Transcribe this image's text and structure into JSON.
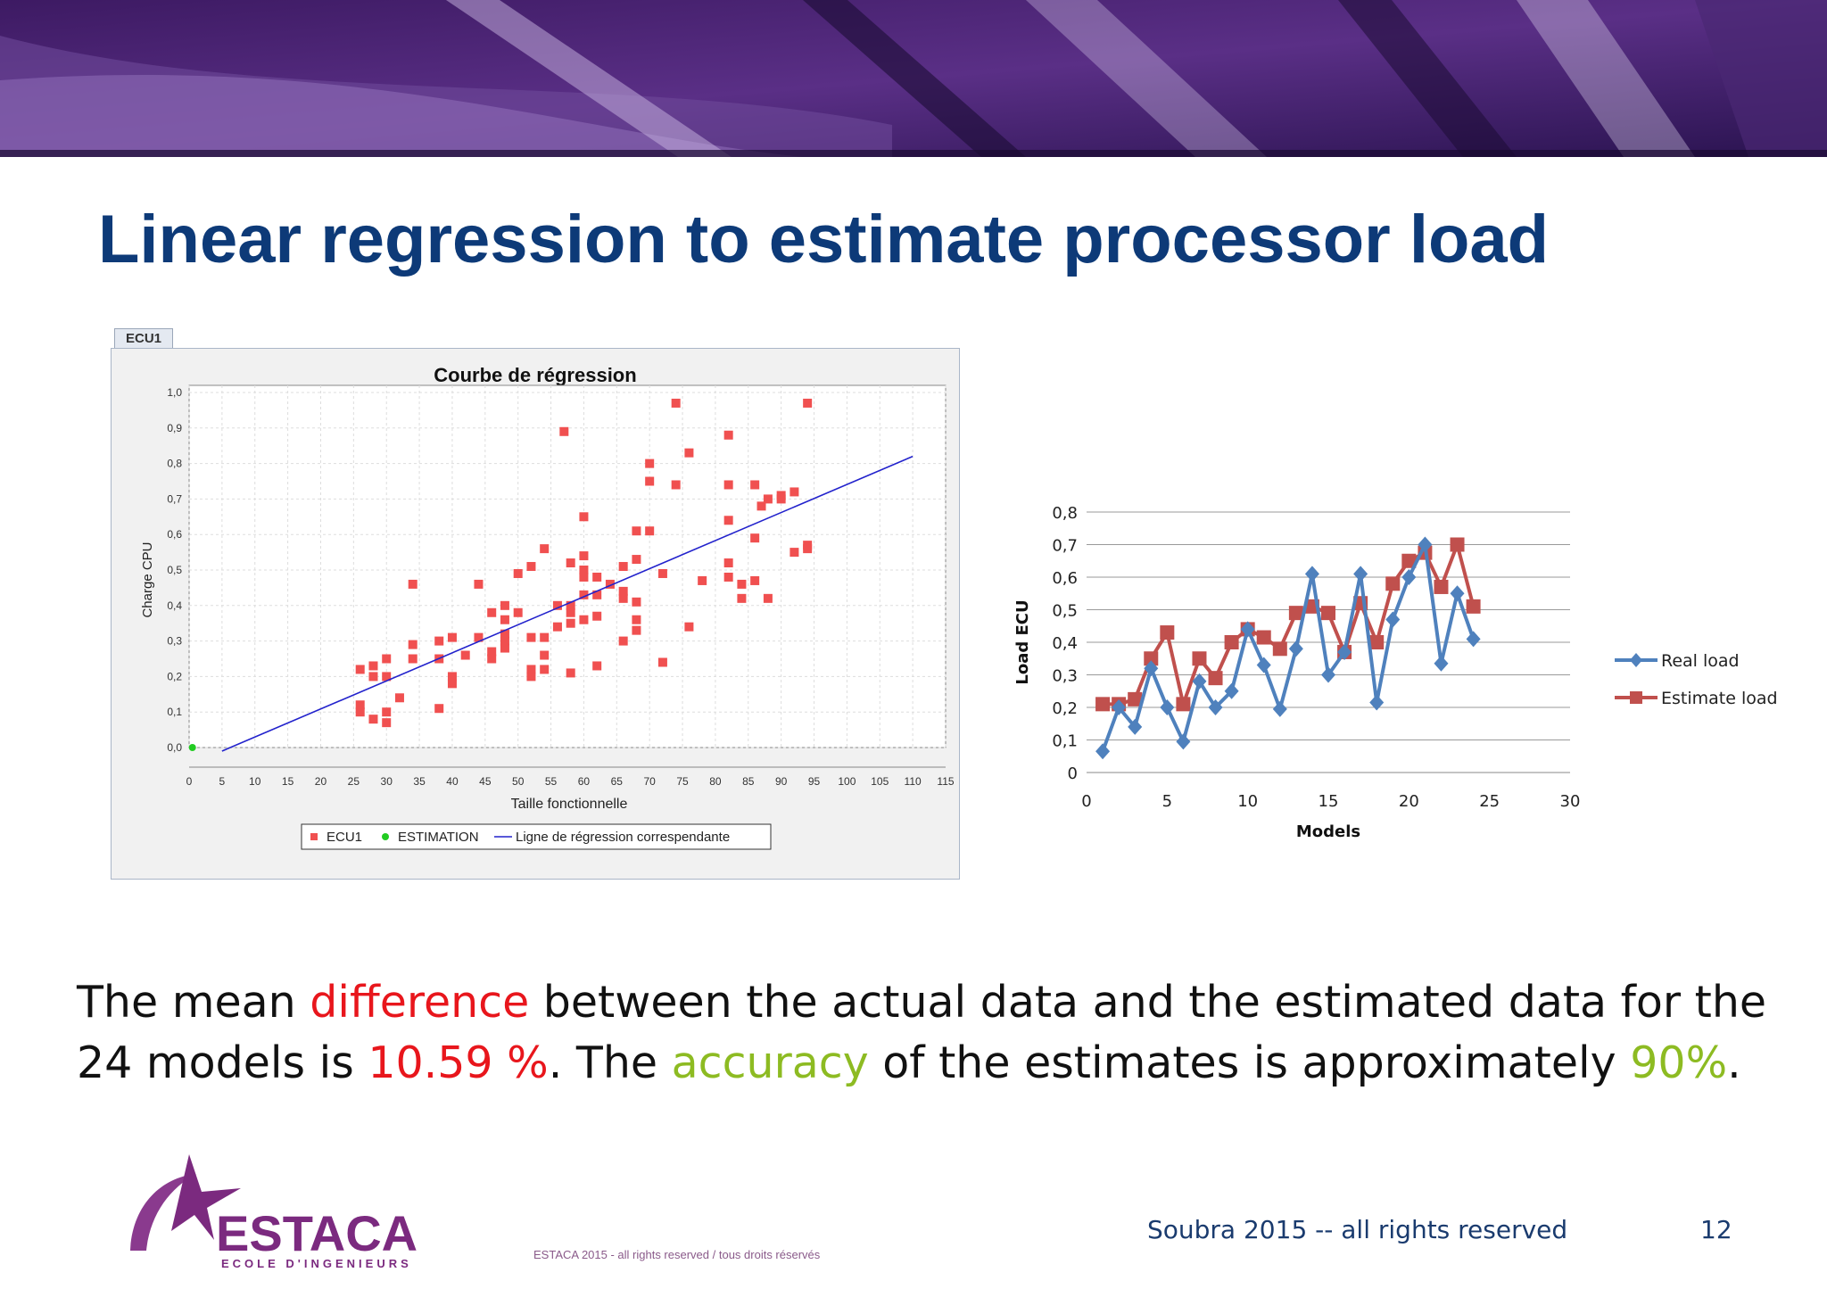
{
  "slide": {
    "title": "Linear regression to estimate processor load",
    "body": {
      "part1": "The mean ",
      "part2": "difference",
      "part3": " between the actual data and the estimated data for the",
      "part4": "24 models is ",
      "part5": "10.59 %",
      "part6": ". The ",
      "part7": "accuracy",
      "part8": " of the estimates is approximately ",
      "part9": "90%",
      "part10": "."
    },
    "footer_credit": "Soubra 2015 --  all rights reserved",
    "page_number": "12",
    "footer_small": "ESTACA 2015 - all rights reserved / tous droits réservés",
    "logo": {
      "name": "ESTACA",
      "subtitle": "ECOLE D'INGENIEURS"
    },
    "colors": {
      "title": "#0d3a78",
      "highlight_red": "#e8161c",
      "highlight_green": "#8dbb22",
      "footer": "#1a3b6e",
      "logo": "#7b2a7f"
    }
  },
  "chart_data": [
    {
      "type": "scatter",
      "tab_label": "ECU1",
      "title": "Courbe de régression",
      "xlabel": "Taille fonctionnelle",
      "ylabel": "Charge CPU",
      "xlim": [
        0,
        115
      ],
      "ylim": [
        0,
        1.0
      ],
      "xticks": [
        0,
        5,
        10,
        15,
        20,
        25,
        30,
        35,
        40,
        45,
        50,
        55,
        60,
        65,
        70,
        75,
        80,
        85,
        90,
        95,
        100,
        105,
        110,
        115
      ],
      "yticks": [
        "0,0",
        "0,1",
        "0,2",
        "0,3",
        "0,4",
        "0,5",
        "0,6",
        "0,7",
        "0,8",
        "0,9",
        "1,0"
      ],
      "grid": true,
      "legend_position": "bottom",
      "legend": [
        "ECU1",
        "ESTIMATION",
        "Ligne de régression correspendante"
      ],
      "colors": {
        "ECU1": "#f05050",
        "ESTIMATION": "#22cc22",
        "regression": "#2222cc"
      },
      "series": [
        {
          "name": "ECU1",
          "points": [
            [
              26,
              0.22
            ],
            [
              26,
              0.12
            ],
            [
              26,
              0.1
            ],
            [
              28,
              0.08
            ],
            [
              28,
              0.2
            ],
            [
              28,
              0.23
            ],
            [
              30,
              0.25
            ],
            [
              30,
              0.2
            ],
            [
              30,
              0.1
            ],
            [
              30,
              0.07
            ],
            [
              32,
              0.14
            ],
            [
              34,
              0.46
            ],
            [
              34,
              0.29
            ],
            [
              34,
              0.25
            ],
            [
              38,
              0.3
            ],
            [
              38,
              0.25
            ],
            [
              38,
              0.11
            ],
            [
              40,
              0.31
            ],
            [
              40,
              0.2
            ],
            [
              40,
              0.18
            ],
            [
              42,
              0.26
            ],
            [
              44,
              0.31
            ],
            [
              44,
              0.46
            ],
            [
              46,
              0.38
            ],
            [
              46,
              0.27
            ],
            [
              46,
              0.25
            ],
            [
              48,
              0.4
            ],
            [
              48,
              0.36
            ],
            [
              48,
              0.32
            ],
            [
              48,
              0.3
            ],
            [
              48,
              0.28
            ],
            [
              50,
              0.49
            ],
            [
              50,
              0.38
            ],
            [
              52,
              0.51
            ],
            [
              52,
              0.31
            ],
            [
              52,
              0.22
            ],
            [
              52,
              0.2
            ],
            [
              54,
              0.56
            ],
            [
              54,
              0.31
            ],
            [
              54,
              0.26
            ],
            [
              54,
              0.22
            ],
            [
              56,
              0.4
            ],
            [
              56,
              0.34
            ],
            [
              57,
              0.89
            ],
            [
              58,
              0.52
            ],
            [
              58,
              0.4
            ],
            [
              58,
              0.38
            ],
            [
              58,
              0.35
            ],
            [
              58,
              0.21
            ],
            [
              60,
              0.65
            ],
            [
              60,
              0.54
            ],
            [
              60,
              0.5
            ],
            [
              60,
              0.48
            ],
            [
              60,
              0.43
            ],
            [
              60,
              0.36
            ],
            [
              62,
              0.48
            ],
            [
              62,
              0.43
            ],
            [
              62,
              0.37
            ],
            [
              62,
              0.23
            ],
            [
              64,
              0.46
            ],
            [
              66,
              0.51
            ],
            [
              66,
              0.44
            ],
            [
              66,
              0.42
            ],
            [
              66,
              0.3
            ],
            [
              68,
              0.53
            ],
            [
              68,
              0.41
            ],
            [
              68,
              0.36
            ],
            [
              68,
              0.33
            ],
            [
              68,
              0.61
            ],
            [
              70,
              0.8
            ],
            [
              70,
              0.75
            ],
            [
              70,
              0.61
            ],
            [
              72,
              0.49
            ],
            [
              72,
              0.24
            ],
            [
              74,
              0.97
            ],
            [
              74,
              0.74
            ],
            [
              76,
              0.83
            ],
            [
              76,
              0.34
            ],
            [
              78,
              0.47
            ],
            [
              82,
              0.88
            ],
            [
              82,
              0.74
            ],
            [
              82,
              0.64
            ],
            [
              82,
              0.52
            ],
            [
              82,
              0.48
            ],
            [
              84,
              0.46
            ],
            [
              84,
              0.42
            ],
            [
              86,
              0.74
            ],
            [
              86,
              0.59
            ],
            [
              86,
              0.47
            ],
            [
              87,
              0.68
            ],
            [
              88,
              0.7
            ],
            [
              88,
              0.42
            ],
            [
              90,
              0.71
            ],
            [
              90,
              0.7
            ],
            [
              92,
              0.72
            ],
            [
              92,
              0.55
            ],
            [
              94,
              0.57
            ],
            [
              94,
              0.56
            ],
            [
              94,
              0.97
            ]
          ]
        },
        {
          "name": "ESTIMATION",
          "points": [
            [
              0.5,
              0.0
            ]
          ]
        },
        {
          "name": "Ligne de régression correspendante",
          "line": [
            [
              5,
              -0.01
            ],
            [
              110,
              0.82
            ]
          ]
        }
      ]
    },
    {
      "type": "line",
      "xlabel": "Models",
      "ylabel": "Load ECU",
      "xlim": [
        0,
        30
      ],
      "ylim": [
        0,
        0.8
      ],
      "xticks": [
        "0",
        "5",
        "10",
        "15",
        "20",
        "25",
        "30"
      ],
      "yticks": [
        "0",
        "0,1",
        "0,2",
        "0,3",
        "0,4",
        "0,5",
        "0,6",
        "0,7",
        "0,8"
      ],
      "grid": true,
      "legend_position": "right",
      "x": [
        1,
        2,
        3,
        4,
        5,
        6,
        7,
        8,
        9,
        10,
        11,
        12,
        13,
        14,
        15,
        16,
        17,
        18,
        19,
        20,
        21,
        22,
        23,
        24
      ],
      "series": [
        {
          "name": "Real load",
          "color": "#4f81bd",
          "marker": "diamond",
          "values": [
            0.065,
            0.2,
            0.14,
            0.32,
            0.2,
            0.095,
            0.28,
            0.2,
            0.25,
            0.44,
            0.33,
            0.195,
            0.38,
            0.61,
            0.3,
            0.37,
            0.61,
            0.215,
            0.47,
            0.6,
            0.7,
            0.335,
            0.55,
            0.41
          ]
        },
        {
          "name": "Estimate load",
          "color": "#c0504d",
          "marker": "square",
          "values": [
            0.21,
            0.21,
            0.225,
            0.35,
            0.43,
            0.21,
            0.35,
            0.29,
            0.4,
            0.44,
            0.415,
            0.38,
            0.49,
            0.51,
            0.49,
            0.37,
            0.52,
            0.4,
            0.58,
            0.65,
            0.675,
            0.57,
            0.7,
            0.51
          ]
        }
      ]
    }
  ]
}
